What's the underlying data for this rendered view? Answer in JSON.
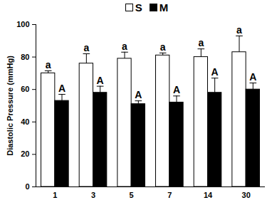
{
  "chart_data": {
    "type": "bar",
    "y_label": "Diastolic Pressure (mmHg)",
    "categories": [
      "1",
      "3",
      "5",
      "7",
      "14",
      "30"
    ],
    "series": [
      {
        "name": "S",
        "color": "#ffffff",
        "values": [
          70,
          76,
          79,
          81,
          80,
          83
        ],
        "errors": [
          1.5,
          6,
          4,
          1.5,
          5,
          10
        ],
        "letters": [
          "a",
          "a",
          "a",
          "a",
          "a",
          "a"
        ]
      },
      {
        "name": "M",
        "color": "#000000",
        "values": [
          53,
          58,
          51,
          52,
          58,
          60
        ],
        "errors": [
          4,
          4,
          2,
          4,
          9,
          4
        ],
        "letters": [
          "A",
          "A",
          "A",
          "A",
          "A",
          "A"
        ]
      }
    ],
    "ylim": [
      0,
      100
    ],
    "yticks": [
      0,
      20,
      40,
      60,
      80,
      100
    ],
    "legend": "top"
  }
}
